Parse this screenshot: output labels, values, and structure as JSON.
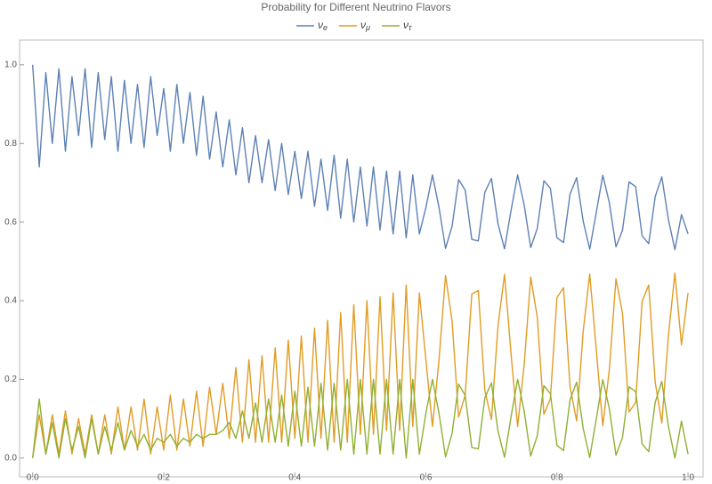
{
  "chart_data": {
    "type": "line",
    "title": "Probability for Different Neutrino Flavors",
    "x": [
      0,
      0.01,
      0.02,
      0.03,
      0.04,
      0.05,
      0.06,
      0.07,
      0.08,
      0.09,
      0.1,
      0.11,
      0.12,
      0.13,
      0.14,
      0.15,
      0.16,
      0.17,
      0.18,
      0.19,
      0.2,
      0.21,
      0.22,
      0.23,
      0.24,
      0.25,
      0.26,
      0.27,
      0.28,
      0.29,
      0.3,
      0.31,
      0.32,
      0.33,
      0.34,
      0.35,
      0.36,
      0.37,
      0.38,
      0.39,
      0.4,
      0.41,
      0.42,
      0.43,
      0.44,
      0.45,
      0.46,
      0.47,
      0.48,
      0.49,
      0.5,
      0.51,
      0.52,
      0.53,
      0.54,
      0.55,
      0.56,
      0.57,
      0.58,
      0.59,
      0.6,
      0.61,
      0.62,
      0.63,
      0.64,
      0.65,
      0.66,
      0.67,
      0.68,
      0.69,
      0.7,
      0.71,
      0.72,
      0.73,
      0.74,
      0.75,
      0.76,
      0.77,
      0.78,
      0.79,
      0.8,
      0.81,
      0.82,
      0.83,
      0.84,
      0.85,
      0.86,
      0.87,
      0.88,
      0.89,
      0.9,
      0.91,
      0.92,
      0.93,
      0.94,
      0.95,
      0.96,
      0.97,
      0.98,
      0.99,
      1
    ],
    "series": [
      {
        "name": "νe",
        "color": "#5e81b5",
        "values": [
          1.0,
          0.74,
          0.98,
          0.8,
          0.99,
          0.78,
          0.97,
          0.82,
          0.99,
          0.79,
          0.98,
          0.81,
          0.97,
          0.78,
          0.96,
          0.8,
          0.95,
          0.79,
          0.97,
          0.82,
          0.94,
          0.78,
          0.95,
          0.8,
          0.93,
          0.77,
          0.92,
          0.76,
          0.88,
          0.74,
          0.86,
          0.72,
          0.84,
          0.7,
          0.82,
          0.7,
          0.81,
          0.68,
          0.8,
          0.67,
          0.78,
          0.66,
          0.78,
          0.64,
          0.76,
          0.63,
          0.77,
          0.61,
          0.76,
          0.6,
          0.74,
          0.59,
          0.74,
          0.58,
          0.73,
          0.57,
          0.73,
          0.56,
          0.72,
          0.57,
          0.637,
          0.72,
          0.637,
          0.533,
          0.59,
          0.708,
          0.681,
          0.556,
          0.552,
          0.676,
          0.711,
          0.596,
          0.532,
          0.631,
          0.72,
          0.643,
          0.535,
          0.584,
          0.705,
          0.686,
          0.56,
          0.548,
          0.671,
          0.713,
          0.602,
          0.531,
          0.625,
          0.719,
          0.649,
          0.537,
          0.579,
          0.702,
          0.69,
          0.565,
          0.545,
          0.665,
          0.715,
          0.607,
          0.53,
          0.619,
          0.57
        ]
      },
      {
        "name": "νμ",
        "color": "#e19c24",
        "values": [
          0.0,
          0.11,
          0.01,
          0.11,
          0.01,
          0.12,
          0.01,
          0.1,
          0.01,
          0.11,
          0.01,
          0.11,
          0.01,
          0.13,
          0.02,
          0.13,
          0.02,
          0.15,
          0.01,
          0.13,
          0.02,
          0.16,
          0.02,
          0.15,
          0.03,
          0.17,
          0.03,
          0.18,
          0.06,
          0.19,
          0.05,
          0.23,
          0.04,
          0.25,
          0.04,
          0.26,
          0.04,
          0.28,
          0.04,
          0.3,
          0.05,
          0.31,
          0.04,
          0.33,
          0.05,
          0.35,
          0.04,
          0.37,
          0.04,
          0.39,
          0.06,
          0.4,
          0.06,
          0.41,
          0.07,
          0.42,
          0.07,
          0.44,
          0.08,
          0.42,
          0.25,
          0.08,
          0.25,
          0.464,
          0.347,
          0.104,
          0.16,
          0.417,
          0.426,
          0.171,
          0.098,
          0.335,
          0.467,
          0.263,
          0.08,
          0.238,
          0.46,
          0.358,
          0.111,
          0.15,
          0.408,
          0.433,
          0.181,
          0.094,
          0.323,
          0.468,
          0.275,
          0.082,
          0.226,
          0.456,
          0.369,
          0.117,
          0.141,
          0.399,
          0.44,
          0.192,
          0.089,
          0.311,
          0.47,
          0.288,
          0.42
        ]
      },
      {
        "name": "ντ",
        "color": "#8fb032",
        "values": [
          0.0,
          0.15,
          0.01,
          0.09,
          0.0,
          0.1,
          0.02,
          0.08,
          0.0,
          0.1,
          0.01,
          0.08,
          0.02,
          0.09,
          0.02,
          0.07,
          0.03,
          0.06,
          0.02,
          0.05,
          0.04,
          0.06,
          0.03,
          0.05,
          0.04,
          0.06,
          0.05,
          0.06,
          0.06,
          0.07,
          0.09,
          0.05,
          0.12,
          0.05,
          0.14,
          0.04,
          0.15,
          0.04,
          0.16,
          0.03,
          0.17,
          0.03,
          0.18,
          0.03,
          0.19,
          0.02,
          0.19,
          0.02,
          0.2,
          0.01,
          0.2,
          0.01,
          0.2,
          0.01,
          0.2,
          0.01,
          0.2,
          0.0,
          0.2,
          0.01,
          0.113,
          0.2,
          0.113,
          0.003,
          0.063,
          0.188,
          0.159,
          0.027,
          0.023,
          0.153,
          0.191,
          0.069,
          0.002,
          0.106,
          0.2,
          0.119,
          0.005,
          0.057,
          0.184,
          0.164,
          0.032,
          0.019,
          0.148,
          0.193,
          0.075,
          0.001,
          0.1,
          0.199,
          0.125,
          0.007,
          0.052,
          0.181,
          0.169,
          0.036,
          0.016,
          0.142,
          0.195,
          0.081,
          0.0,
          0.094,
          0.01
        ]
      }
    ],
    "xlim": [
      -0.02,
      1.023
    ],
    "ylim": [
      -0.048,
      1.063
    ],
    "xticks": [
      {
        "value": 0,
        "label": "0.0"
      },
      0.2,
      0.4,
      0.6,
      0.8,
      {
        "value": 1,
        "label": "1.0"
      }
    ],
    "yticks": [
      {
        "value": 0,
        "label": "0.0"
      },
      0.2,
      0.4,
      0.6,
      0.8,
      {
        "value": 1,
        "label": "1.0"
      }
    ]
  }
}
